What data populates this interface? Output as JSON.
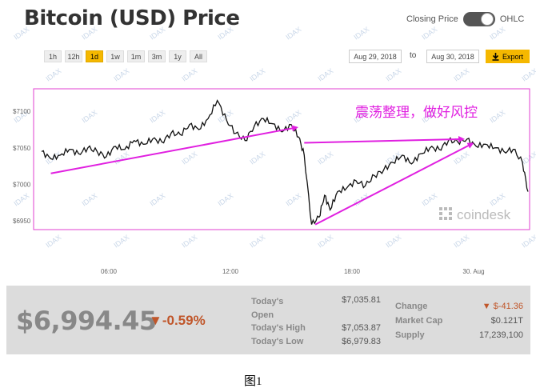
{
  "header": {
    "title": "Bitcoin (USD) Price",
    "closing_price_label": "Closing Price",
    "ohlc_label": "OHLC"
  },
  "ranges": [
    "1h",
    "12h",
    "1d",
    "1w",
    "1m",
    "3m",
    "1y",
    "All"
  ],
  "active_range": "1d",
  "date_from": "Aug 29, 2018",
  "date_to": "Aug 30, 2018",
  "to_label": "to",
  "export_label": "Export",
  "annotation": "震荡整理，做好风控",
  "watermark_brand": "coindesk",
  "watermark_tile": "IDAX",
  "colors": {
    "line": "#111111",
    "arrow": "#e020e0",
    "frame": "#e040d0",
    "accent": "#f5b800",
    "down": "#c0562a"
  },
  "chart_data": {
    "type": "line",
    "x_ticks": [
      "06:00",
      "12:00",
      "18:00",
      "30. Aug"
    ],
    "y_ticks": [
      "$7100",
      "$7050",
      "$7000",
      "$6950"
    ],
    "ylim": [
      6938,
      7120
    ],
    "x": [
      0,
      0.5,
      1,
      1.5,
      2,
      2.5,
      3,
      3.5,
      4,
      4.5,
      5,
      5.5,
      6,
      6.5,
      7,
      7.5,
      8,
      8.5,
      9,
      9.5,
      10,
      10.5,
      11,
      11.5,
      12,
      12.5,
      13,
      13.5,
      13.9,
      14.2,
      14.6,
      15,
      15.3,
      15.6,
      16,
      16.5,
      17,
      17.5,
      18,
      18.5,
      19,
      19.5,
      20,
      20.5,
      21,
      21.5,
      22,
      22.5,
      23,
      23.5,
      24,
      24.5,
      25,
      25.5,
      26,
      26.3
    ],
    "series": [
      {
        "values": [
          7045,
          7035,
          7040,
          7048,
          7042,
          7050,
          7045,
          7038,
          7052,
          7048,
          7060,
          7055,
          7062,
          7058,
          7070,
          7068,
          7082,
          7075,
          7090,
          7115,
          7088,
          7070,
          7060,
          7080,
          7090,
          7083,
          7072,
          7082,
          7065,
          7040,
          6945,
          6955,
          6985,
          6965,
          6990,
          6995,
          7005,
          6998,
          7012,
          7020,
          7030,
          7040,
          7028,
          7042,
          7050,
          7048,
          7060,
          7058,
          7062,
          7052,
          7055,
          7050,
          7045,
          7048,
          7030,
          6990
        ]
      }
    ],
    "trend_arrows": [
      {
        "from": [
          0.5,
          7015
        ],
        "to": [
          13.8,
          7078
        ]
      },
      {
        "from": [
          14.2,
          7057
        ],
        "to": [
          22.8,
          7062
        ]
      },
      {
        "from": [
          14.8,
          6945
        ],
        "to": [
          23.3,
          7056
        ]
      }
    ]
  },
  "stats": {
    "price": "$6,994.45",
    "change_pct": "▼-0.59%",
    "rows": [
      {
        "label": "Today's Open",
        "value": "$7,035.81"
      },
      {
        "label": "Today's High",
        "value": "$7,053.87"
      },
      {
        "label": "Today's Low",
        "value": "$6,979.83"
      }
    ],
    "change_label": "Change",
    "change_value": "▼ $-41.36",
    "market_cap_label": "Market Cap",
    "market_cap_value": "$0.121T",
    "supply_label": "Supply",
    "supply_value": "17,239,100"
  },
  "caption": "图1"
}
